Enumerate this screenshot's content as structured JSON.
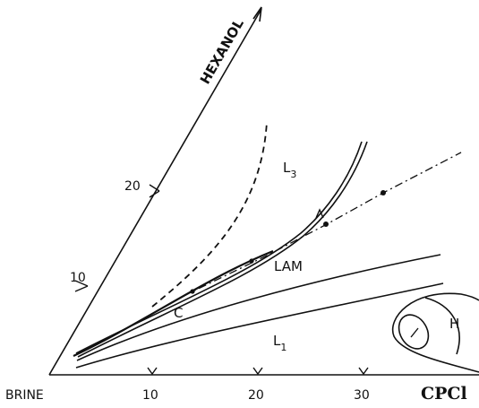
{
  "axes": {
    "diagonal_label": "HEXANOL",
    "origin_label": "BRINE",
    "horizontal_label": "CPCl",
    "horizontal_ticks": [
      "10",
      "20",
      "30"
    ],
    "diagonal_ticks": [
      "10",
      "20"
    ]
  },
  "regions": {
    "l3": {
      "main": "L",
      "sub": "3"
    },
    "lam": "LAM",
    "l1": {
      "main": "L",
      "sub": "1"
    },
    "c": "C",
    "h": "H"
  }
}
